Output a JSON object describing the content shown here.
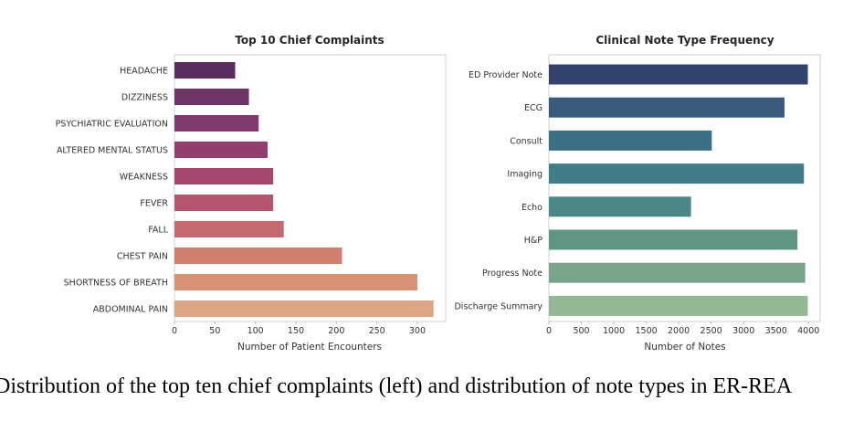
{
  "caption": "Distribution of the top ten chief complaints (left) and distribution of note types in ER-REA",
  "chart_data": [
    {
      "type": "bar",
      "orientation": "horizontal",
      "title": "Top 10 Chief Complaints",
      "xlabel": "Number of Patient Encounters",
      "ylabel": "",
      "categories": [
        "HEADACHE",
        "DIZZINESS",
        "PSYCHIATRIC EVALUATION",
        "ALTERED MENTAL STATUS",
        "WEAKNESS",
        "FEVER",
        "FALL",
        "CHEST PAIN",
        "SHORTNESS OF BREATH",
        "ABDOMINAL PAIN"
      ],
      "values": [
        75,
        92,
        104,
        115,
        122,
        122,
        135,
        207,
        300,
        320
      ],
      "xlim": [
        0,
        335
      ],
      "xticks": [
        0,
        50,
        100,
        150,
        200,
        250,
        300
      ],
      "grid": false,
      "colors": [
        "#5a2d5f",
        "#6c3467",
        "#7e3b6c",
        "#903f6e",
        "#a4476f",
        "#b4566f",
        "#c3696f",
        "#cf7e70",
        "#d79276",
        "#dca584"
      ]
    },
    {
      "type": "bar",
      "orientation": "horizontal",
      "title": "Clinical Note Type Frequency",
      "xlabel": "Number of Notes",
      "ylabel": "",
      "categories": [
        "ED Provider Note",
        "ECG",
        "Consult",
        "Imaging",
        "Echo",
        "H&P",
        "Progress Note",
        "Discharge Summary"
      ],
      "values": [
        3990,
        3630,
        2510,
        3930,
        2190,
        3830,
        3950,
        3990
      ],
      "xlim": [
        0,
        4180
      ],
      "xticks": [
        0,
        500,
        1000,
        1500,
        2000,
        2500,
        3000,
        3500,
        4000
      ],
      "grid": false,
      "colors": [
        "#34426e",
        "#395a7b",
        "#3c6e84",
        "#417c87",
        "#4a8785",
        "#5e9683",
        "#79a68a",
        "#95b996"
      ]
    }
  ]
}
